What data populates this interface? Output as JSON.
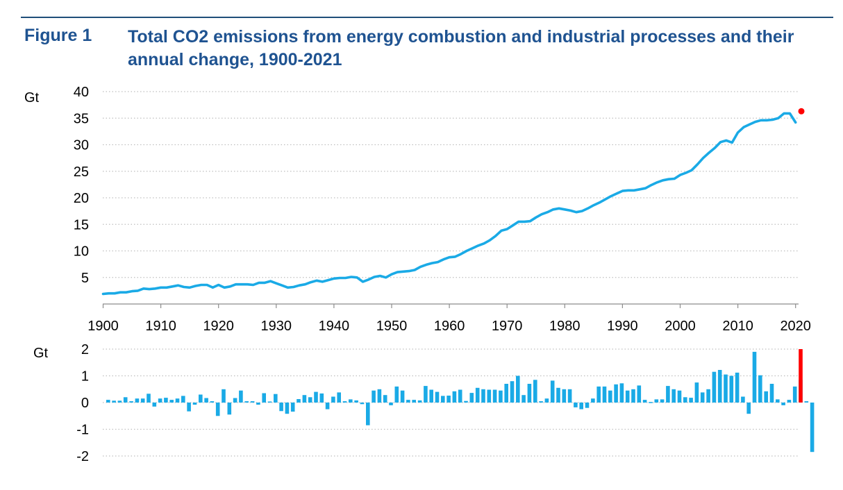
{
  "figure": {
    "label": "Figure 1",
    "title": "Total CO2 emissions from energy combustion and industrial processes and their annual change, 1900-2021"
  },
  "colors": {
    "series": "#1aaae6",
    "highlight": "#ff0000",
    "title": "#1f5391",
    "grid": "#bfbfbf"
  },
  "chart_data": [
    {
      "type": "line",
      "ylabel": "Gt",
      "ylim": [
        0,
        40
      ],
      "yticks": [
        5,
        10,
        15,
        20,
        25,
        30,
        35,
        40
      ],
      "xticks": [
        1900,
        1910,
        1920,
        1930,
        1940,
        1950,
        1960,
        1970,
        1980,
        1990,
        2000,
        2010,
        2020
      ],
      "grid": "horizontal dotted",
      "x_start": 1900,
      "x": [
        1900,
        1901,
        1902,
        1903,
        1904,
        1905,
        1906,
        1907,
        1908,
        1909,
        1910,
        1911,
        1912,
        1913,
        1914,
        1915,
        1916,
        1917,
        1918,
        1919,
        1920,
        1921,
        1922,
        1923,
        1924,
        1925,
        1926,
        1927,
        1928,
        1929,
        1930,
        1931,
        1932,
        1933,
        1934,
        1935,
        1936,
        1937,
        1938,
        1939,
        1940,
        1941,
        1942,
        1943,
        1944,
        1945,
        1946,
        1947,
        1948,
        1949,
        1950,
        1951,
        1952,
        1953,
        1954,
        1955,
        1956,
        1957,
        1958,
        1959,
        1960,
        1961,
        1962,
        1963,
        1964,
        1965,
        1966,
        1967,
        1968,
        1969,
        1970,
        1971,
        1972,
        1973,
        1974,
        1975,
        1976,
        1977,
        1978,
        1979,
        1980,
        1981,
        1982,
        1983,
        1984,
        1985,
        1986,
        1987,
        1988,
        1989,
        1990,
        1991,
        1992,
        1993,
        1994,
        1995,
        1996,
        1997,
        1998,
        1999,
        2000,
        2001,
        2002,
        2003,
        2004,
        2005,
        2006,
        2007,
        2008,
        2009,
        2010,
        2011,
        2012,
        2013,
        2014,
        2015,
        2016,
        2017,
        2018,
        2019,
        2020
      ],
      "values": [
        1.9,
        2.0,
        2.0,
        2.2,
        2.2,
        2.4,
        2.5,
        2.9,
        2.8,
        2.9,
        3.1,
        3.1,
        3.3,
        3.5,
        3.2,
        3.1,
        3.4,
        3.6,
        3.6,
        3.1,
        3.6,
        3.1,
        3.3,
        3.7,
        3.7,
        3.7,
        3.6,
        4.0,
        4.0,
        4.3,
        3.9,
        3.5,
        3.1,
        3.2,
        3.5,
        3.7,
        4.1,
        4.4,
        4.2,
        4.5,
        4.8,
        4.9,
        4.9,
        5.1,
        5.0,
        4.2,
        4.6,
        5.1,
        5.3,
        5.0,
        5.6,
        6.0,
        6.1,
        6.2,
        6.4,
        7.0,
        7.4,
        7.7,
        7.9,
        8.4,
        8.8,
        8.9,
        9.4,
        10.0,
        10.5,
        11.0,
        11.4,
        12.0,
        12.8,
        13.8,
        14.1,
        14.8,
        15.5,
        15.5,
        15.6,
        16.3,
        16.9,
        17.3,
        17.8,
        18.0,
        17.8,
        17.6,
        17.3,
        17.5,
        18.0,
        18.6,
        19.1,
        19.7,
        20.3,
        20.8,
        21.3,
        21.4,
        21.4,
        21.6,
        21.8,
        22.4,
        22.9,
        23.3,
        23.5,
        23.6,
        24.3,
        24.7,
        25.2,
        26.3,
        27.5,
        28.5,
        29.4,
        30.5,
        30.8,
        30.4,
        32.3,
        33.3,
        33.8,
        34.3,
        34.6,
        34.6,
        34.7,
        35.0,
        35.9,
        35.9,
        34.2
      ],
      "highlight_point": {
        "x": 2021,
        "value": 36.3
      }
    },
    {
      "type": "bar",
      "ylabel": "Gt",
      "ylim": [
        -2,
        2
      ],
      "yticks": [
        2,
        1,
        0,
        -1,
        -2
      ],
      "grid": "horizontal dotted",
      "x_start": 1901,
      "values": [
        0.1,
        0.07,
        0.07,
        0.2,
        0.05,
        0.15,
        0.15,
        0.33,
        -0.15,
        0.15,
        0.18,
        0.1,
        0.15,
        0.25,
        -0.33,
        -0.08,
        0.3,
        0.17,
        0.05,
        -0.5,
        0.5,
        -0.45,
        0.17,
        0.45,
        0.05,
        0.05,
        -0.08,
        0.35,
        0.04,
        0.32,
        -0.32,
        -0.42,
        -0.34,
        0.13,
        0.28,
        0.2,
        0.4,
        0.34,
        -0.25,
        0.22,
        0.38,
        0.05,
        0.12,
        0.08,
        -0.06,
        -0.85,
        0.45,
        0.5,
        0.28,
        -0.1,
        0.6,
        0.45,
        0.1,
        0.1,
        0.08,
        0.62,
        0.48,
        0.4,
        0.25,
        0.26,
        0.42,
        0.48,
        0.06,
        0.36,
        0.55,
        0.5,
        0.48,
        0.48,
        0.45,
        0.7,
        0.8,
        1.0,
        0.28,
        0.7,
        0.85,
        0.05,
        0.15,
        0.82,
        0.55,
        0.5,
        0.5,
        -0.18,
        -0.25,
        -0.2,
        0.15,
        0.6,
        0.6,
        0.45,
        0.68,
        0.72,
        0.45,
        0.5,
        0.64,
        0.1,
        0.02,
        0.12,
        0.12,
        0.62,
        0.5,
        0.45,
        0.2,
        0.18,
        0.75,
        0.38,
        0.5,
        1.15,
        1.22,
        1.05,
        1.0,
        1.12,
        0.22,
        -0.42,
        1.9,
        1.02,
        0.42,
        0.7,
        0.12,
        -0.1,
        0.1,
        0.6,
        0.85,
        0.05,
        -1.85
      ],
      "highlight_bar": {
        "x": 2021,
        "value": 2.0
      }
    }
  ]
}
